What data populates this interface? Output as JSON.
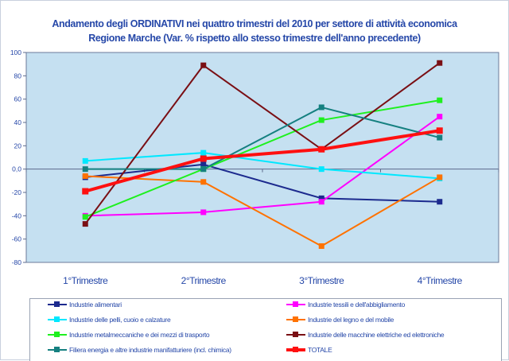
{
  "chart_data": {
    "type": "line",
    "title": "Andamento degli ORDINATIVI nei quattro trimestri del 2010 per settore di attività economica",
    "subtitle": "Regione Marche (Var. % rispetto allo stesso trimestre dell'anno precedente)",
    "categories": [
      "1°Trimestre",
      "2°Trimestre",
      "3°Trimestre",
      "4°Trimestre"
    ],
    "ylim": [
      -80,
      100
    ],
    "yticks": [
      "100",
      "80",
      "60",
      "40",
      "20",
      "0,0",
      "-20",
      "-40",
      "-60",
      "-80"
    ],
    "grid": false,
    "legend_position": "bottom",
    "plot_background": "#c5e0f1",
    "series": [
      {
        "name": "Industrie alimentari",
        "color": "#1c2a8e",
        "values": [
          -7,
          4,
          -25,
          -28
        ]
      },
      {
        "name": "Industrie tessili e dell'abbigliamento",
        "color": "#ff00ff",
        "values": [
          -40,
          -37,
          -28,
          45
        ]
      },
      {
        "name": "Industrie delle pelli, cuoio e calzature",
        "color": "#00e8ff",
        "values": [
          7,
          14,
          0,
          -8
        ]
      },
      {
        "name": "Industrie del legno e del mobile",
        "color": "#ff7200",
        "values": [
          -6,
          -11,
          -66,
          -7
        ]
      },
      {
        "name": "Industrie metalmeccaniche e dei mezzi di trasporto",
        "color": "#1ef01e",
        "values": [
          -41,
          0,
          42,
          59
        ]
      },
      {
        "name": "Industrie delle macchine elettriche ed elettroniche",
        "color": "#7a0f14",
        "values": [
          -47,
          89,
          17,
          91
        ]
      },
      {
        "name": "Filiera energia e altre industrie manifatturiere (incl. chimica)",
        "color": "#158080",
        "values": [
          0,
          0,
          53,
          27
        ]
      },
      {
        "name": "TOTALE",
        "color": "#ff1010",
        "values": [
          -19,
          9,
          17,
          33
        ],
        "thick": true
      }
    ]
  }
}
